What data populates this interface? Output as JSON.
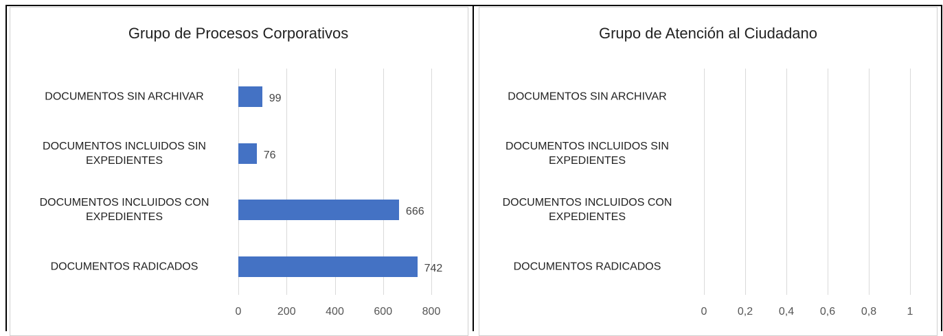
{
  "chart_data": [
    {
      "type": "bar",
      "title": "Grupo de Procesos Corporativos",
      "categories": [
        "DOCUMENTOS SIN ARCHIVAR",
        "DOCUMENTOS INCLUIDOS SIN EXPEDIENTES",
        "DOCUMENTOS INCLUIDOS CON EXPEDIENTES",
        "DOCUMENTOS RADICADOS"
      ],
      "values": [
        99,
        76,
        666,
        742
      ],
      "color": "#4472c4",
      "xlim": [
        0,
        800
      ],
      "xticks": [
        0,
        200,
        400,
        600,
        800
      ],
      "grid": true
    },
    {
      "type": "bar",
      "title": "Grupo de Atención al Ciudadano",
      "categories": [
        "DOCUMENTOS SIN ARCHIVAR",
        "DOCUMENTOS INCLUIDOS SIN EXPEDIENTES",
        "DOCUMENTOS INCLUIDOS CON EXPEDIENTES",
        "DOCUMENTOS RADICADOS"
      ],
      "color": "#4472c4",
      "xlim": [
        0,
        1
      ],
      "xticks": [
        0,
        {
          "value": 0.2,
          "label": "0,2"
        },
        {
          "value": 0.4,
          "label": "0,4"
        },
        {
          "value": 0.6,
          "label": "0,6"
        },
        {
          "value": 0.8,
          "label": "0,8"
        },
        1
      ],
      "grid": true
    }
  ]
}
